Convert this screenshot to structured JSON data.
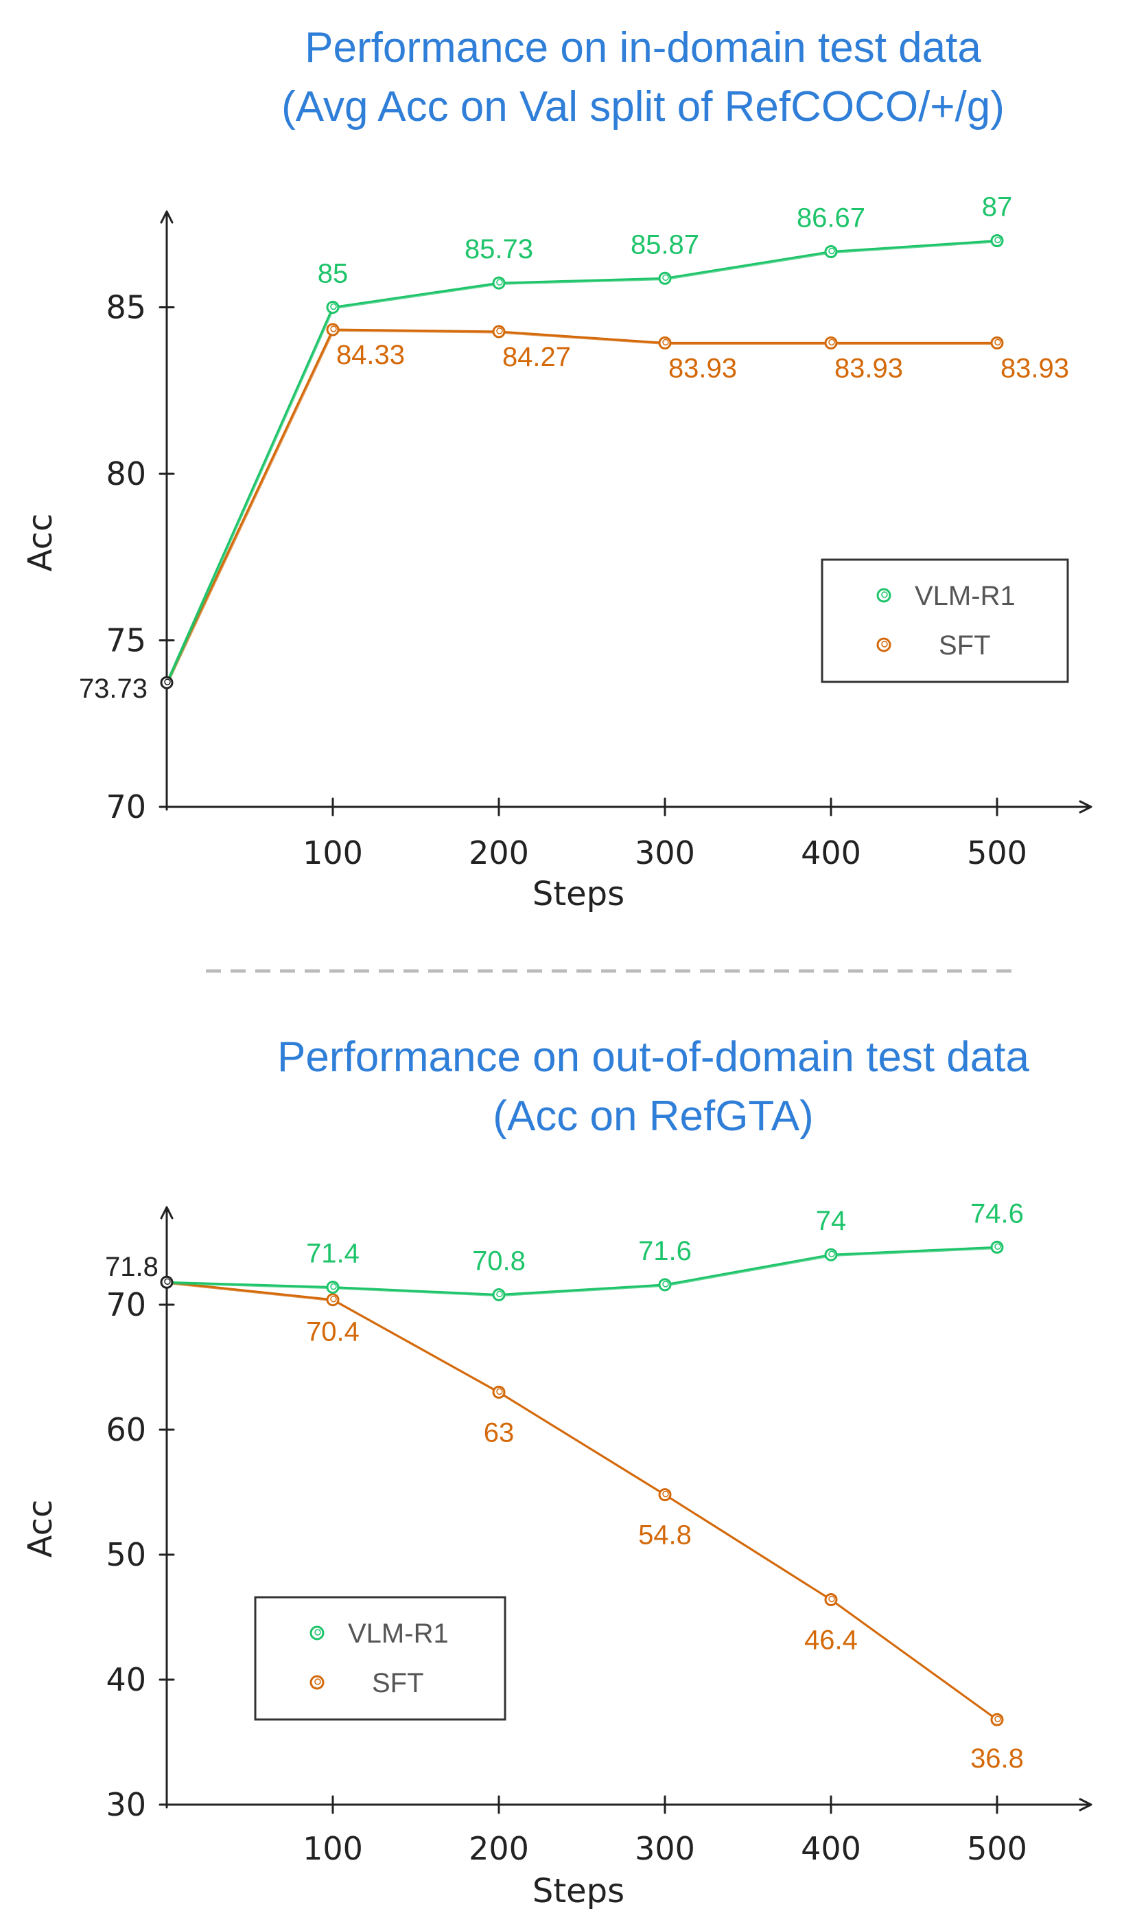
{
  "separator_style": "dashed",
  "chart_data": [
    {
      "type": "line",
      "title_line1": "Performance on in-domain test data",
      "title_line2": "(Avg Acc on Val split of RefCOCO/+/g)",
      "xlabel": "Steps",
      "ylabel": "Acc",
      "x": [
        0,
        100,
        200,
        300,
        400,
        500
      ],
      "xticks": [
        "100",
        "200",
        "300",
        "400",
        "500"
      ],
      "yticks": [
        "70",
        "75",
        "80",
        "85"
      ],
      "ylim": [
        70,
        89
      ],
      "legend_position": "right",
      "series": [
        {
          "name": "VLM-R1",
          "color": "#1ec46a",
          "values": [
            73.73,
            85,
            85.73,
            85.87,
            86.67,
            87
          ],
          "labels": [
            "73.73",
            "85",
            "85.73",
            "85.87",
            "86.67",
            "87"
          ]
        },
        {
          "name": "SFT",
          "color": "#d4690a",
          "values": [
            73.73,
            84.33,
            84.27,
            83.93,
            83.93,
            83.93
          ],
          "labels": [
            "",
            "84.33",
            "84.27",
            "83.93",
            "83.93",
            "83.93"
          ]
        }
      ]
    },
    {
      "type": "line",
      "title_line1": "Performance on out-of-domain test data",
      "title_line2": "(Acc on RefGTA)",
      "xlabel": "Steps",
      "ylabel": "Acc",
      "x": [
        0,
        100,
        200,
        300,
        400,
        500
      ],
      "xticks": [
        "100",
        "200",
        "300",
        "400",
        "500"
      ],
      "yticks": [
        "30",
        "40",
        "50",
        "60",
        "70"
      ],
      "ylim": [
        30,
        79
      ],
      "legend_position": "left",
      "series": [
        {
          "name": "VLM-R1",
          "color": "#1ec46a",
          "values": [
            71.8,
            71.4,
            70.8,
            71.6,
            74,
            74.6
          ],
          "labels": [
            "71.8",
            "71.4",
            "70.8",
            "71.6",
            "74",
            "74.6"
          ]
        },
        {
          "name": "SFT",
          "color": "#d4690a",
          "values": [
            71.8,
            70.4,
            63,
            54.8,
            46.4,
            36.8
          ],
          "labels": [
            "",
            "70.4",
            "63",
            "54.8",
            "46.4",
            "36.8"
          ]
        }
      ]
    }
  ]
}
